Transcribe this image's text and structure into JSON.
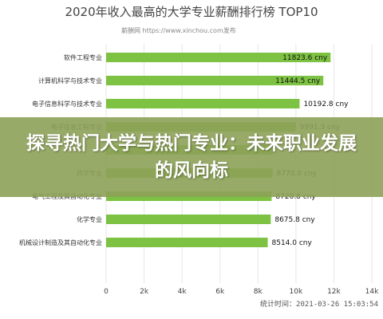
{
  "colors": {
    "bar": "#7dc242",
    "grid": "#e6e6e6",
    "banner": "#8da158"
  },
  "chart_data": {
    "type": "bar",
    "orientation": "horizontal",
    "title": "2020年收入最高的大学专业薪酬排行榜 TOP10",
    "subtitle": "薪酬网 https://www.xinchou.com发布",
    "categories": [
      "软件工程专业",
      "计算机科学与技术专业",
      "电子信息科学与技术专业",
      "电子信息工程专业",
      "",
      "药学专业",
      "电气工程及其自动化专业",
      "化学专业",
      "机械设计制造及其自动化专业"
    ],
    "values": [
      11823.6,
      11444.5,
      10192.8,
      9991.3,
      8800,
      8770.0,
      8720.8,
      8675.8,
      8514.0
    ],
    "value_labels": [
      "11823.6 cny",
      "11444.5 cny",
      "10192.8 cny",
      "9991.3 cny",
      "",
      "8770.0 cny",
      "8720.8 cny",
      "8675.8 cny",
      "8514.0 cny"
    ],
    "xlim": [
      0,
      14000
    ],
    "x_ticks": [
      {
        "value": 0,
        "label": "0"
      },
      {
        "value": 2000,
        "label": "2k"
      },
      {
        "value": 4000,
        "label": "4k"
      },
      {
        "value": 6000,
        "label": "6k"
      },
      {
        "value": 8000,
        "label": "8k"
      },
      {
        "value": 10000,
        "label": "10k"
      },
      {
        "value": 12000,
        "label": "12k"
      },
      {
        "value": 14000,
        "label": "14k"
      }
    ],
    "grid": true,
    "footer": "统计时间：2021-03-26 15:03:54"
  },
  "banner": {
    "text": "探寻热门大学与热门专业：未来职业发展的风向标"
  }
}
